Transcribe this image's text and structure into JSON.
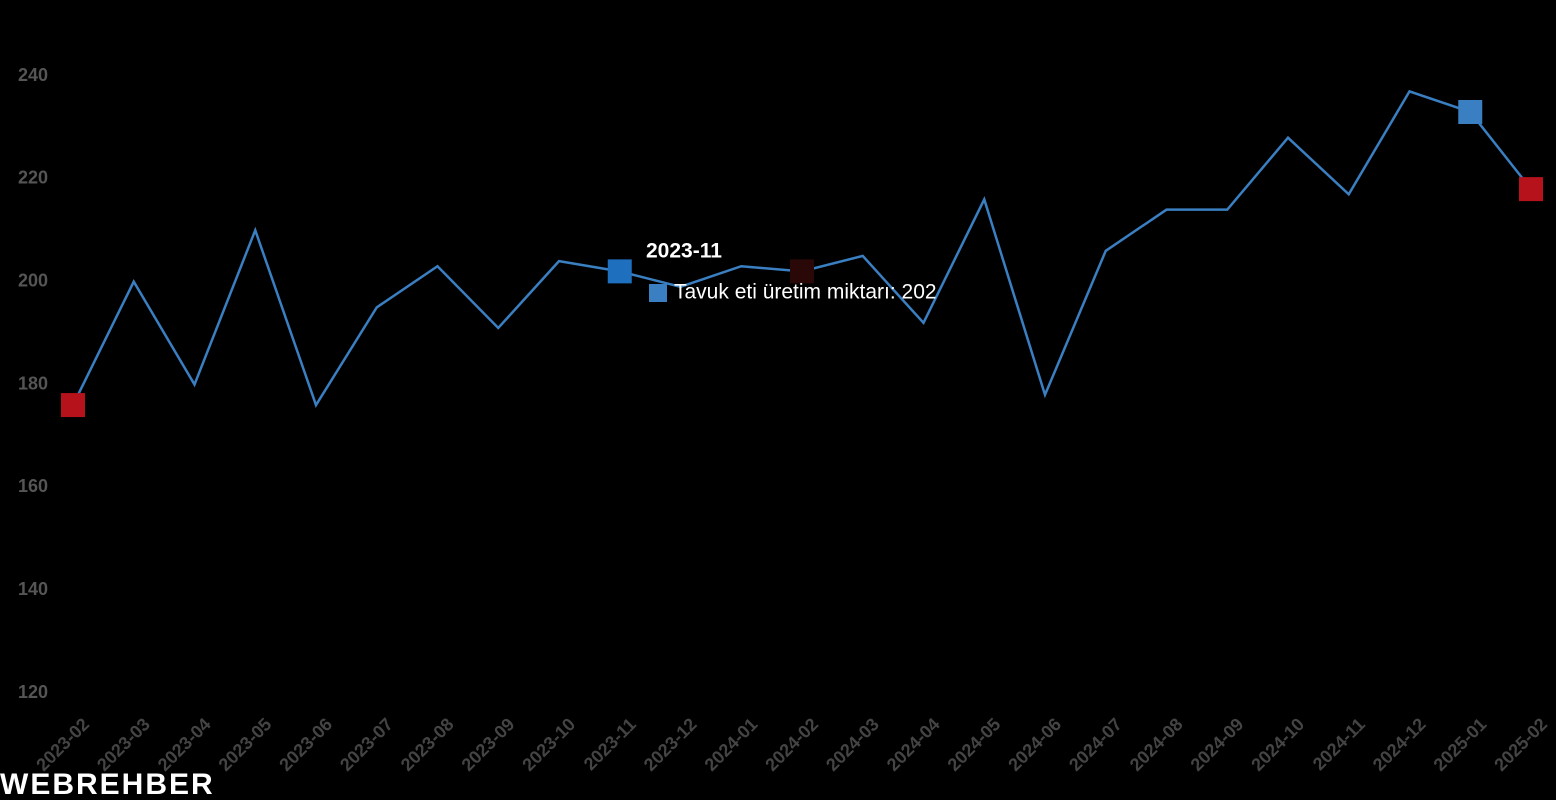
{
  "chart_data": {
    "type": "line",
    "categories": [
      "2023-02",
      "2023-03",
      "2023-04",
      "2023-05",
      "2023-06",
      "2023-07",
      "2023-08",
      "2023-09",
      "2023-10",
      "2023-11",
      "2023-12",
      "2024-01",
      "2024-02",
      "2024-03",
      "2024-04",
      "2024-05",
      "2024-06",
      "2024-07",
      "2024-08",
      "2024-09",
      "2024-10",
      "2024-11",
      "2024-12",
      "2025-01",
      "2025-02"
    ],
    "series": [
      {
        "name": "Tavuk eti üretim miktarı",
        "color": "#3a7fc1",
        "values": [
          176,
          200,
          180,
          210,
          176,
          195,
          203,
          191,
          204,
          202,
          199,
          203,
          202,
          205,
          192,
          216,
          178,
          206,
          214,
          214,
          228,
          217,
          237,
          233,
          218
        ],
        "marker_colors": [
          "#b5121b",
          null,
          null,
          null,
          null,
          null,
          null,
          null,
          null,
          "#1f6fbf",
          null,
          null,
          "#2a0808",
          null,
          null,
          null,
          null,
          null,
          null,
          null,
          null,
          null,
          null,
          "#3a7fc1",
          "#b5121b"
        ]
      }
    ],
    "ylim": [
      120,
      245
    ],
    "yticks": [
      120,
      140,
      160,
      180,
      200,
      220,
      240
    ],
    "grid": false,
    "tooltip": {
      "title": "2023-11",
      "label": "Tavuk eti üretim miktarı: 202"
    },
    "watermark": "WEBREHBER"
  }
}
